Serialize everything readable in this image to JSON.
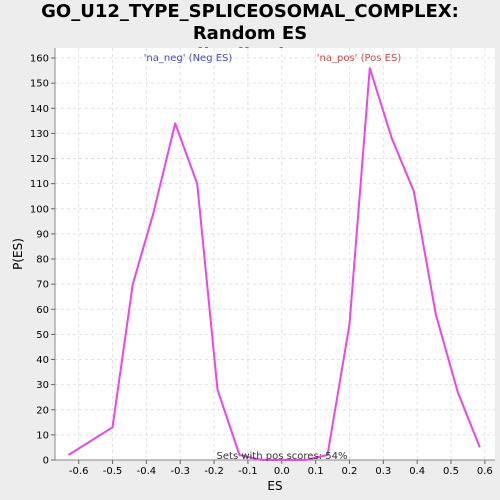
{
  "chart_data": {
    "type": "line",
    "title_line1": "GO_U12_TYPE_SPLICEOSOMAL_COMPLEX: Random ES",
    "title_line2": "distribution",
    "xlabel": "ES",
    "ylabel": "P(ES)",
    "xlim": [
      -0.67,
      0.63
    ],
    "ylim": [
      0,
      164
    ],
    "x_ticks": [
      -0.6,
      -0.5,
      -0.4,
      -0.3,
      -0.2,
      -0.1,
      0.0,
      0.1,
      0.2,
      0.3,
      0.4,
      0.5,
      0.6
    ],
    "x_tick_labels": [
      "-0.6",
      "-0.5",
      "-0.4",
      "-0.3",
      "-0.2",
      "-0.1",
      "0.0",
      "0.1",
      "0.2",
      "0.3",
      "0.4",
      "0.5",
      "0.6"
    ],
    "y_ticks": [
      0,
      10,
      20,
      30,
      40,
      50,
      60,
      70,
      80,
      90,
      100,
      110,
      120,
      130,
      140,
      150,
      160
    ],
    "y_tick_labels": [
      "0",
      "10",
      "20",
      "30",
      "40",
      "50",
      "60",
      "70",
      "80",
      "90",
      "100",
      "110",
      "120",
      "130",
      "140",
      "150",
      "160"
    ],
    "grid": true,
    "line_color": "#ee44ee",
    "neg_label": "'na_neg' (Neg ES)",
    "neg_label_color": "#4444dd",
    "pos_label": "'na_pos' (Pos ES)",
    "pos_label_color": "#dd4444",
    "annotation": "Sets with pos scores: 54%",
    "points": [
      [
        -0.63,
        2
      ],
      [
        -0.5,
        13
      ],
      [
        -0.44,
        70
      ],
      [
        -0.38,
        98
      ],
      [
        -0.315,
        134
      ],
      [
        -0.25,
        110
      ],
      [
        -0.19,
        28
      ],
      [
        -0.125,
        2
      ],
      [
        -0.06,
        0
      ],
      [
        0.0,
        0
      ],
      [
        0.07,
        0
      ],
      [
        0.135,
        2
      ],
      [
        0.2,
        54
      ],
      [
        0.26,
        156
      ],
      [
        0.325,
        128
      ],
      [
        0.39,
        107
      ],
      [
        0.455,
        58
      ],
      [
        0.52,
        27
      ],
      [
        0.585,
        5
      ]
    ]
  }
}
